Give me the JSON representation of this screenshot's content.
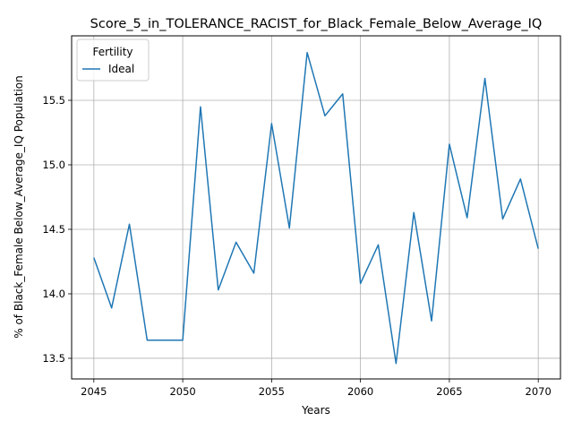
{
  "chart_data": {
    "type": "line",
    "title": "Score_5_in_TOLERANCE_RACIST_for_Black_Female_Below_Average_IQ",
    "xlabel": "Years",
    "ylabel": "% of Black_Female Below_Average_IQ Population",
    "xlim": [
      2043.75,
      2071.25
    ],
    "ylim": [
      13.34,
      16.0
    ],
    "xticks": [
      2045,
      2050,
      2055,
      2060,
      2065,
      2070
    ],
    "yticks": [
      13.5,
      14.0,
      14.5,
      15.0,
      15.5
    ],
    "ytick_labels": [
      "13.5",
      "14.0",
      "14.5",
      "15.0",
      "15.5"
    ],
    "grid": true,
    "legend": {
      "title": "Fertility",
      "position": "top-left"
    },
    "series": [
      {
        "name": "Ideal",
        "color": "#1f77b4",
        "x": [
          2045,
          2046,
          2047,
          2048,
          2049,
          2050,
          2051,
          2052,
          2053,
          2054,
          2055,
          2056,
          2057,
          2058,
          2059,
          2060,
          2061,
          2062,
          2063,
          2064,
          2065,
          2066,
          2067,
          2068,
          2069,
          2070
        ],
        "y": [
          14.28,
          13.89,
          14.54,
          13.64,
          13.64,
          13.64,
          15.45,
          14.03,
          14.4,
          14.16,
          15.32,
          14.51,
          15.87,
          15.38,
          15.55,
          14.08,
          14.38,
          13.46,
          14.63,
          13.79,
          15.16,
          14.59,
          15.67,
          14.58,
          14.89,
          14.35
        ]
      }
    ]
  }
}
